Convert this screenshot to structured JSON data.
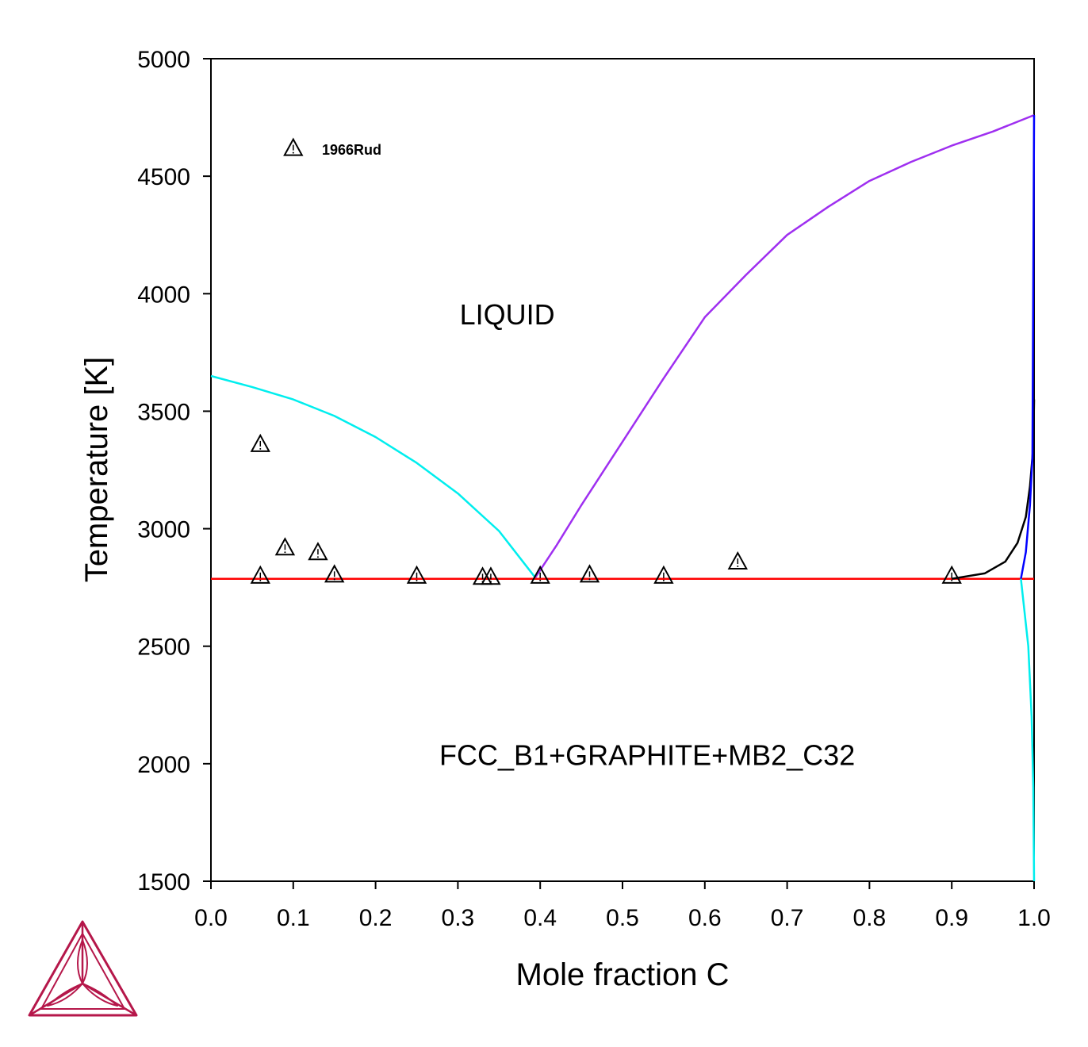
{
  "chart_data": {
    "type": "line",
    "title": "",
    "xlabel": "Mole fraction C",
    "ylabel": "Temperature [K]",
    "xlim": [
      0.0,
      1.0
    ],
    "ylim": [
      1500,
      5000
    ],
    "x_ticks": [
      "0.0",
      "0.1",
      "0.2",
      "0.3",
      "0.4",
      "0.5",
      "0.6",
      "0.7",
      "0.8",
      "0.9",
      "1.0"
    ],
    "y_ticks": [
      "1500",
      "2000",
      "2500",
      "3000",
      "3500",
      "4000",
      "4500",
      "5000"
    ],
    "grid": false,
    "region_labels": [
      {
        "text": "LIQUID",
        "x": 0.36,
        "y": 3870
      },
      {
        "text": "FCC_B1+GRAPHITE+MB2_C32",
        "x": 0.53,
        "y": 1995
      }
    ],
    "series": [
      {
        "color": "#00eeee",
        "points": [
          [
            0.0,
            3650
          ],
          [
            0.05,
            3603
          ],
          [
            0.1,
            3550
          ],
          [
            0.15,
            3480
          ],
          [
            0.2,
            3390
          ],
          [
            0.25,
            3280
          ],
          [
            0.3,
            3150
          ],
          [
            0.35,
            2990
          ],
          [
            0.394,
            2792
          ]
        ]
      },
      {
        "color": "#9f2ff0",
        "points": [
          [
            0.394,
            2792
          ],
          [
            0.42,
            2930
          ],
          [
            0.45,
            3100
          ],
          [
            0.5,
            3370
          ],
          [
            0.55,
            3640
          ],
          [
            0.6,
            3900
          ],
          [
            0.65,
            4080
          ],
          [
            0.7,
            4250
          ],
          [
            0.75,
            4370
          ],
          [
            0.8,
            4480
          ],
          [
            0.85,
            4560
          ],
          [
            0.9,
            4630
          ],
          [
            0.95,
            4690
          ],
          [
            1.0,
            4760
          ]
        ]
      },
      {
        "color": "#ff0000",
        "points": [
          [
            0.0,
            2787
          ],
          [
            1.0,
            2787
          ]
        ]
      },
      {
        "color": "#000000",
        "points": [
          [
            0.9,
            2787
          ],
          [
            0.94,
            2810
          ],
          [
            0.965,
            2860
          ],
          [
            0.98,
            2940
          ],
          [
            0.99,
            3050
          ],
          [
            0.995,
            3180
          ],
          [
            0.999,
            3350
          ],
          [
            1.0,
            3550
          ]
        ]
      },
      {
        "color": "#0000ff",
        "points": [
          [
            0.984,
            2787
          ],
          [
            0.99,
            2900
          ],
          [
            0.995,
            3100
          ],
          [
            0.998,
            3300
          ],
          [
            1.0,
            4760
          ]
        ]
      },
      {
        "color": "#00eeee",
        "points": [
          [
            0.984,
            2787
          ],
          [
            0.993,
            2500
          ],
          [
            0.997,
            2200
          ],
          [
            0.999,
            1900
          ],
          [
            1.0,
            1500
          ]
        ]
      }
    ],
    "experimental_points": {
      "marker": "triangle",
      "name": "1966Rud",
      "legend_marker": [
        0.1,
        4620
      ],
      "points": [
        [
          0.06,
          3360
        ],
        [
          0.09,
          2920
        ],
        [
          0.13,
          2900
        ],
        [
          0.06,
          2800
        ],
        [
          0.15,
          2805
        ],
        [
          0.25,
          2800
        ],
        [
          0.33,
          2795
        ],
        [
          0.34,
          2795
        ],
        [
          0.4,
          2800
        ],
        [
          0.46,
          2805
        ],
        [
          0.55,
          2800
        ],
        [
          0.64,
          2860
        ],
        [
          0.9,
          2800
        ]
      ]
    }
  },
  "logo": {
    "name": "thermo-calc-logo",
    "color": "#b5174a"
  }
}
